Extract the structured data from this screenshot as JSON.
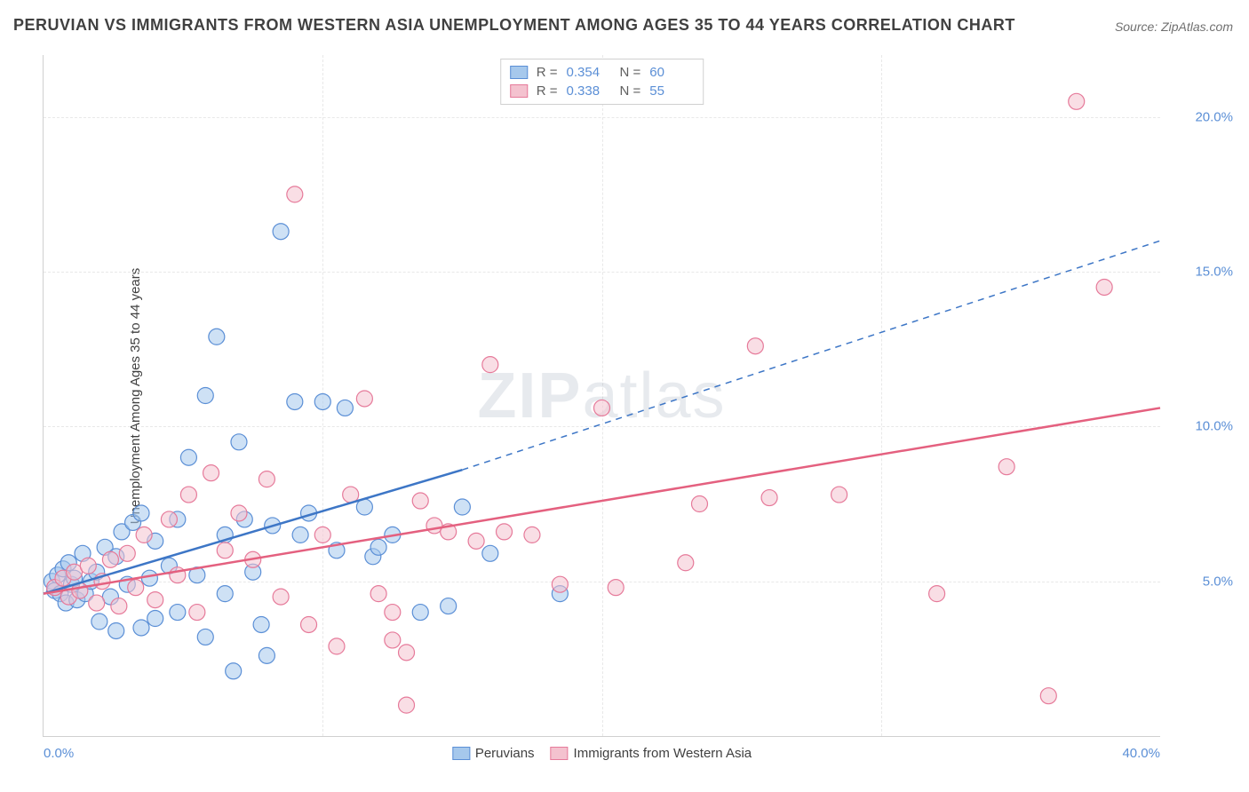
{
  "title": "PERUVIAN VS IMMIGRANTS FROM WESTERN ASIA UNEMPLOYMENT AMONG AGES 35 TO 44 YEARS CORRELATION CHART",
  "source": "Source: ZipAtlas.com",
  "ylabel": "Unemployment Among Ages 35 to 44 years",
  "watermark_a": "ZIP",
  "watermark_b": "atlas",
  "chart": {
    "type": "scatter",
    "xlim": [
      0,
      40
    ],
    "ylim": [
      0,
      22
    ],
    "xticks": [
      {
        "v": 0,
        "l": "0.0%"
      },
      {
        "v": 40,
        "l": "40.0%"
      }
    ],
    "yticks": [
      {
        "v": 5,
        "l": "5.0%"
      },
      {
        "v": 10,
        "l": "10.0%"
      },
      {
        "v": 15,
        "l": "15.0%"
      },
      {
        "v": 20,
        "l": "20.0%"
      }
    ],
    "xgrids": [
      10,
      20,
      30
    ],
    "background_color": "#ffffff",
    "grid_color": "#e8e8e8",
    "axis_color": "#d0d0d0",
    "tick_label_color": "#5b8fd6",
    "marker_radius": 9,
    "marker_opacity": 0.55,
    "series": [
      {
        "name": "Peruvians",
        "color_fill": "#a6c8ec",
        "color_stroke": "#5b8fd6",
        "R": "0.354",
        "N": "60",
        "trend": {
          "x1": 0,
          "y1": 4.6,
          "x2": 15,
          "y2": 8.6,
          "dash_to_x": 40,
          "dash_to_y": 16.0,
          "color": "#3d76c6",
          "width": 2.5
        },
        "points": [
          [
            0.3,
            5.0
          ],
          [
            0.4,
            4.7
          ],
          [
            0.5,
            5.2
          ],
          [
            0.6,
            4.6
          ],
          [
            0.7,
            5.4
          ],
          [
            0.8,
            4.3
          ],
          [
            0.9,
            5.6
          ],
          [
            1.0,
            4.9
          ],
          [
            1.1,
            5.1
          ],
          [
            1.2,
            4.4
          ],
          [
            1.4,
            5.9
          ],
          [
            1.5,
            4.6
          ],
          [
            1.7,
            5.0
          ],
          [
            1.9,
            5.3
          ],
          [
            2.0,
            3.7
          ],
          [
            2.2,
            6.1
          ],
          [
            2.4,
            4.5
          ],
          [
            2.6,
            5.8
          ],
          [
            2.6,
            3.4
          ],
          [
            2.8,
            6.6
          ],
          [
            3.0,
            4.9
          ],
          [
            3.2,
            6.9
          ],
          [
            3.5,
            3.5
          ],
          [
            3.5,
            7.2
          ],
          [
            3.8,
            5.1
          ],
          [
            4.0,
            6.3
          ],
          [
            4.0,
            3.8
          ],
          [
            4.5,
            5.5
          ],
          [
            4.8,
            4.0
          ],
          [
            4.8,
            7.0
          ],
          [
            5.2,
            9.0
          ],
          [
            5.5,
            5.2
          ],
          [
            5.8,
            11.0
          ],
          [
            5.8,
            3.2
          ],
          [
            6.2,
            12.9
          ],
          [
            6.5,
            4.6
          ],
          [
            6.5,
            6.5
          ],
          [
            6.8,
            2.1
          ],
          [
            7.0,
            9.5
          ],
          [
            7.2,
            7.0
          ],
          [
            7.5,
            5.3
          ],
          [
            7.8,
            3.6
          ],
          [
            8.0,
            2.6
          ],
          [
            8.2,
            6.8
          ],
          [
            8.5,
            16.3
          ],
          [
            9.0,
            10.8
          ],
          [
            9.2,
            6.5
          ],
          [
            9.5,
            7.2
          ],
          [
            10.0,
            10.8
          ],
          [
            10.5,
            6.0
          ],
          [
            10.8,
            10.6
          ],
          [
            11.5,
            7.4
          ],
          [
            11.8,
            5.8
          ],
          [
            12.0,
            6.1
          ],
          [
            12.5,
            6.5
          ],
          [
            13.5,
            4.0
          ],
          [
            14.5,
            4.2
          ],
          [
            15.0,
            7.4
          ],
          [
            16.0,
            5.9
          ],
          [
            18.5,
            4.6
          ]
        ]
      },
      {
        "name": "Immigrants from Western Asia",
        "color_fill": "#f4c2cf",
        "color_stroke": "#e67a9a",
        "R": "0.338",
        "N": "55",
        "trend": {
          "x1": 0,
          "y1": 4.6,
          "x2": 40,
          "y2": 10.6,
          "color": "#e4607f",
          "width": 2.5
        },
        "points": [
          [
            0.4,
            4.8
          ],
          [
            0.7,
            5.1
          ],
          [
            0.9,
            4.5
          ],
          [
            1.1,
            5.3
          ],
          [
            1.3,
            4.7
          ],
          [
            1.6,
            5.5
          ],
          [
            1.9,
            4.3
          ],
          [
            2.1,
            5.0
          ],
          [
            2.4,
            5.7
          ],
          [
            2.7,
            4.2
          ],
          [
            3.0,
            5.9
          ],
          [
            3.3,
            4.8
          ],
          [
            3.6,
            6.5
          ],
          [
            4.0,
            4.4
          ],
          [
            4.5,
            7.0
          ],
          [
            4.8,
            5.2
          ],
          [
            5.2,
            7.8
          ],
          [
            5.5,
            4.0
          ],
          [
            6.0,
            8.5
          ],
          [
            6.5,
            6.0
          ],
          [
            7.0,
            7.2
          ],
          [
            7.5,
            5.7
          ],
          [
            8.0,
            8.3
          ],
          [
            8.5,
            4.5
          ],
          [
            9.0,
            17.5
          ],
          [
            9.5,
            3.6
          ],
          [
            10.0,
            6.5
          ],
          [
            10.5,
            2.9
          ],
          [
            11.0,
            7.8
          ],
          [
            11.5,
            10.9
          ],
          [
            12.0,
            4.6
          ],
          [
            12.5,
            3.1
          ],
          [
            13.0,
            2.7
          ],
          [
            13.5,
            7.6
          ],
          [
            14.0,
            6.8
          ],
          [
            14.5,
            6.6
          ],
          [
            15.5,
            6.3
          ],
          [
            16.0,
            12.0
          ],
          [
            16.5,
            6.6
          ],
          [
            17.5,
            6.5
          ],
          [
            18.5,
            4.9
          ],
          [
            20.0,
            10.6
          ],
          [
            20.5,
            4.8
          ],
          [
            23.5,
            7.5
          ],
          [
            23.0,
            5.6
          ],
          [
            25.5,
            12.6
          ],
          [
            26.0,
            7.7
          ],
          [
            28.5,
            7.8
          ],
          [
            32.0,
            4.6
          ],
          [
            34.5,
            8.7
          ],
          [
            36.0,
            1.3
          ],
          [
            37.0,
            20.5
          ],
          [
            38.0,
            14.5
          ],
          [
            13.0,
            1.0
          ],
          [
            12.5,
            4.0
          ]
        ]
      }
    ]
  },
  "legend_series1": "Peruvians",
  "legend_series2": "Immigrants from Western Asia"
}
